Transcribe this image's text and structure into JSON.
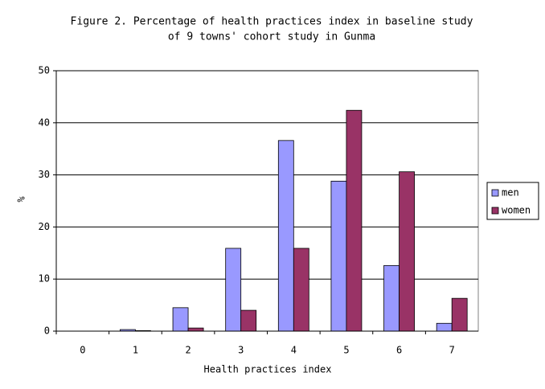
{
  "chart_data": {
    "type": "bar",
    "title": [
      "Figure 2. Percentage of health practices index in baseline study",
      "of 9 towns' cohort study in Gunma"
    ],
    "x_label": "Health practices index",
    "y_label": "%",
    "categories": [
      "0",
      "1",
      "2",
      "3",
      "4",
      "5",
      "6",
      "7"
    ],
    "series": [
      {
        "name": "men",
        "color": "#9999ff",
        "values": [
          0,
          0.3,
          4.5,
          15.9,
          36.6,
          28.8,
          12.6,
          1.5
        ]
      },
      {
        "name": "women",
        "color": "#993366",
        "values": [
          0,
          0.1,
          0.6,
          4.0,
          15.9,
          42.4,
          30.6,
          6.3
        ]
      }
    ],
    "ylim": [
      0,
      50
    ],
    "yticks": [
      0,
      10,
      20,
      30,
      40,
      50
    ],
    "grid": true,
    "legend": "right"
  }
}
